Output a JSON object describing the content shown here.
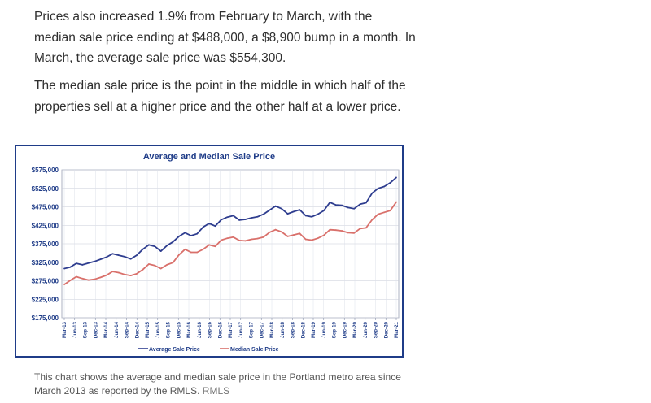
{
  "article": {
    "paragraph1": "Prices also increased 1.9% from February to March, with the median sale price ending at $488,000, a $8,900 bump in a month. In March, the average sale price was $554,300.",
    "paragraph2": "The median sale price is the point in the middle in which half of the properties sell at a higher price and the other half at a lower price."
  },
  "caption": {
    "text": "This chart shows the average and median sale price in the Portland metro area since March 2013 as reported by the RMLS.",
    "source": "RMLS"
  },
  "chart_data": {
    "type": "line",
    "title": "Average and Median Sale Price",
    "xlabel": "",
    "ylabel": "",
    "ylim": [
      175000,
      575000
    ],
    "y_ticks": [
      "$575,000",
      "$525,000",
      "$475,000",
      "$425,000",
      "$375,000",
      "$325,000",
      "$275,000",
      "$225,000",
      "$175,000"
    ],
    "y_tick_values": [
      575000,
      525000,
      475000,
      425000,
      375000,
      325000,
      275000,
      225000,
      175000
    ],
    "x_tick_labels": [
      "Mar-13",
      "Jun-13",
      "Sep-13",
      "Dec-13",
      "Mar-14",
      "Jun-14",
      "Sep-14",
      "Dec-14",
      "Mar-15",
      "Jun-15",
      "Sep-15",
      "Dec-15",
      "Mar-16",
      "Jun-16",
      "Sep-16",
      "Dec-16",
      "Mar-17",
      "Jun-17",
      "Sep-17",
      "Dec-17",
      "Mar-18",
      "Jun-18",
      "Sep-18",
      "Dec-18",
      "Mar-19",
      "Jun-19",
      "Sep-19",
      "Dec-19",
      "Mar-20",
      "Jun-20",
      "Sep-20",
      "Dec-20",
      "Mar-21"
    ],
    "grid": true,
    "legend_position": "bottom",
    "series": [
      {
        "name": "Average Sale Price",
        "color": "#2e3d8f",
        "values": [
          308000,
          312000,
          322000,
          318000,
          323000,
          327000,
          333000,
          339000,
          348000,
          344000,
          340000,
          334000,
          344000,
          360000,
          372000,
          368000,
          355000,
          370000,
          380000,
          395000,
          405000,
          397000,
          402000,
          420000,
          430000,
          423000,
          440000,
          447000,
          451000,
          439000,
          441000,
          445000,
          448000,
          455000,
          466000,
          477000,
          470000,
          456000,
          462000,
          467000,
          451000,
          448000,
          455000,
          465000,
          487000,
          480000,
          479000,
          473000,
          470000,
          482000,
          486000,
          512000,
          525000,
          530000,
          540000,
          554300
        ]
      },
      {
        "name": "Median Sale Price",
        "color": "#d9706b",
        "values": [
          265000,
          276000,
          286000,
          281000,
          277000,
          279000,
          284000,
          290000,
          300000,
          297000,
          292000,
          289000,
          294000,
          305000,
          320000,
          316000,
          308000,
          318000,
          324000,
          345000,
          360000,
          352000,
          352000,
          360000,
          372000,
          368000,
          385000,
          390000,
          393000,
          384000,
          383000,
          387000,
          389000,
          393000,
          406000,
          413000,
          407000,
          395000,
          399000,
          403000,
          387000,
          385000,
          390000,
          398000,
          413000,
          412000,
          410000,
          405000,
          404000,
          416000,
          418000,
          440000,
          455000,
          460000,
          465000,
          488000
        ]
      }
    ]
  }
}
